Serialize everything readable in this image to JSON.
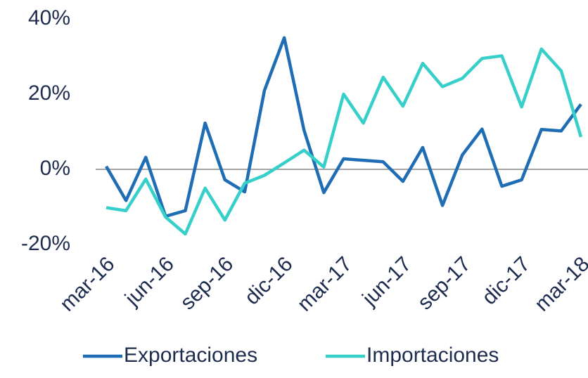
{
  "chart_data": {
    "type": "line",
    "categories": [
      "mar-16",
      null,
      null,
      "jun-16",
      null,
      null,
      "sep-16",
      null,
      null,
      "dic-16",
      null,
      null,
      "mar-17",
      null,
      null,
      "jun-17",
      null,
      null,
      "sep-17",
      null,
      null,
      "dic-17",
      null,
      null,
      "mar-18"
    ],
    "series": [
      {
        "name": "Exportaciones",
        "color": "#1f6db4",
        "values": [
          0.8,
          -8.3,
          3.2,
          -12.5,
          -11,
          12.3,
          -2.8,
          -6,
          21,
          35,
          10.4,
          -6.2,
          2.8,
          2.4,
          2,
          -3.2,
          5.8,
          -9.6,
          3.8,
          10.7,
          -4.5,
          -2.8,
          10.6,
          10.2,
          17.3
        ]
      },
      {
        "name": "Importaciones",
        "color": "#36cfc9",
        "values": [
          -10.2,
          -11,
          -2.6,
          -12.7,
          -17.2,
          -5,
          -13.5,
          -3.7,
          -1.6,
          1.7,
          5.1,
          0.6,
          20,
          12.3,
          24.5,
          16.8,
          28.2,
          22,
          24.2,
          29.5,
          30.2,
          16.6,
          32,
          26.2,
          8.6
        ]
      }
    ],
    "ylim": [
      -20,
      40
    ],
    "yticks": [
      {
        "value": -20,
        "label": "-20%"
      },
      {
        "value": 0,
        "label": "0%"
      },
      {
        "value": 20,
        "label": "20%"
      },
      {
        "value": 40,
        "label": "40%"
      }
    ]
  }
}
